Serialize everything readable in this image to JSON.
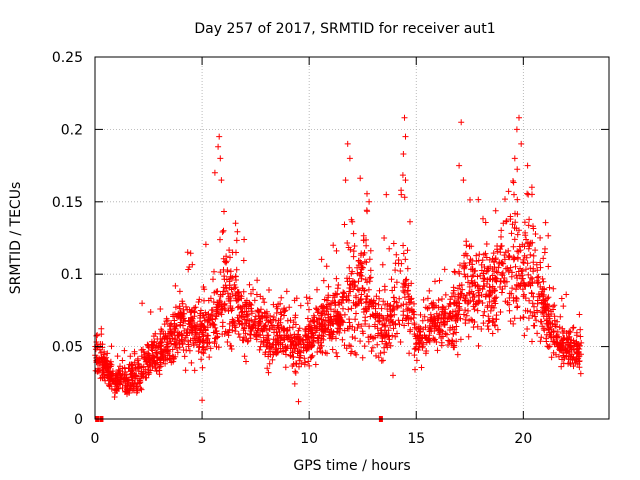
{
  "chart_data": {
    "type": "scatter",
    "title": "Day 257 of 2017, SRMTID for receiver aut1",
    "xlabel": "GPS time / hours",
    "ylabel": "SRMTID / TECUs",
    "xlim": [
      0,
      24
    ],
    "ylim": [
      0,
      0.25
    ],
    "xticks": [
      0,
      5,
      10,
      15,
      20
    ],
    "xtick_labels": [
      "0",
      "5",
      "10",
      "15",
      "20"
    ],
    "yticks": [
      0,
      0.05,
      0.1,
      0.15,
      0.2,
      0.25
    ],
    "ytick_labels": [
      "0",
      "0.05",
      "0.1",
      "0.15",
      "0.2",
      "0.25"
    ],
    "grid": true,
    "series": [
      {
        "name": "aut1",
        "color": "#ff0000",
        "marker": "plus",
        "description": "Dense scatter of SRMTID samples (~3000 points) spanning 0–22.7 h",
        "profile": {
          "hours": [
            0,
            0.5,
            1,
            1.5,
            2,
            2.5,
            3,
            3.5,
            4,
            4.5,
            5,
            5.5,
            6,
            6.5,
            7,
            7.5,
            8,
            8.5,
            9,
            9.5,
            10,
            10.5,
            11,
            11.5,
            12,
            12.5,
            13,
            13.5,
            14,
            14.5,
            15,
            15.5,
            16,
            16.5,
            17,
            17.5,
            18,
            18.5,
            19,
            19.5,
            20,
            20.5,
            21,
            21.5,
            22,
            22.7
          ],
          "center": [
            0.045,
            0.035,
            0.025,
            0.028,
            0.03,
            0.04,
            0.045,
            0.055,
            0.065,
            0.06,
            0.06,
            0.065,
            0.09,
            0.085,
            0.07,
            0.065,
            0.06,
            0.06,
            0.055,
            0.05,
            0.055,
            0.065,
            0.065,
            0.075,
            0.085,
            0.09,
            0.07,
            0.06,
            0.08,
            0.095,
            0.055,
            0.06,
            0.065,
            0.07,
            0.08,
            0.09,
            0.09,
            0.085,
            0.1,
            0.11,
            0.105,
            0.09,
            0.075,
            0.055,
            0.05,
            0.045
          ],
          "spread": [
            0.01,
            0.01,
            0.008,
            0.01,
            0.012,
            0.012,
            0.014,
            0.016,
            0.02,
            0.02,
            0.018,
            0.022,
            0.035,
            0.03,
            0.02,
            0.018,
            0.018,
            0.018,
            0.016,
            0.016,
            0.016,
            0.018,
            0.018,
            0.025,
            0.035,
            0.035,
            0.022,
            0.02,
            0.03,
            0.04,
            0.014,
            0.015,
            0.018,
            0.022,
            0.03,
            0.03,
            0.028,
            0.025,
            0.035,
            0.04,
            0.035,
            0.03,
            0.022,
            0.014,
            0.012,
            0.01
          ]
        },
        "highlights": [
          {
            "x": 5.8,
            "y": 0.195
          },
          {
            "x": 5.75,
            "y": 0.188
          },
          {
            "x": 5.85,
            "y": 0.18
          },
          {
            "x": 5.6,
            "y": 0.17
          },
          {
            "x": 5.9,
            "y": 0.165
          },
          {
            "x": 6.0,
            "y": 0.13
          },
          {
            "x": 11.8,
            "y": 0.19
          },
          {
            "x": 11.9,
            "y": 0.18
          },
          {
            "x": 11.7,
            "y": 0.165
          },
          {
            "x": 12.8,
            "y": 0.15
          },
          {
            "x": 13.6,
            "y": 0.155
          },
          {
            "x": 13.5,
            "y": 0.125
          },
          {
            "x": 14.45,
            "y": 0.208
          },
          {
            "x": 14.5,
            "y": 0.195
          },
          {
            "x": 14.4,
            "y": 0.183
          },
          {
            "x": 14.5,
            "y": 0.165
          },
          {
            "x": 14.3,
            "y": 0.155
          },
          {
            "x": 17.1,
            "y": 0.205
          },
          {
            "x": 17.0,
            "y": 0.175
          },
          {
            "x": 17.2,
            "y": 0.165
          },
          {
            "x": 19.8,
            "y": 0.208
          },
          {
            "x": 19.7,
            "y": 0.2
          },
          {
            "x": 19.9,
            "y": 0.19
          },
          {
            "x": 19.6,
            "y": 0.18
          },
          {
            "x": 20.2,
            "y": 0.175
          },
          {
            "x": 20.4,
            "y": 0.16
          },
          {
            "x": 2.2,
            "y": 0.08
          },
          {
            "x": 4.4,
            "y": 0.105
          },
          {
            "x": 9.5,
            "y": 0.012
          },
          {
            "x": 5.0,
            "y": 0.013
          },
          {
            "x": 22.0,
            "y": 0.086
          },
          {
            "x": 21.0,
            "y": 0.115
          },
          {
            "x": 21.4,
            "y": 0.09
          }
        ],
        "zero_markers": [
          0.1,
          0.3,
          13.35
        ]
      }
    ]
  }
}
